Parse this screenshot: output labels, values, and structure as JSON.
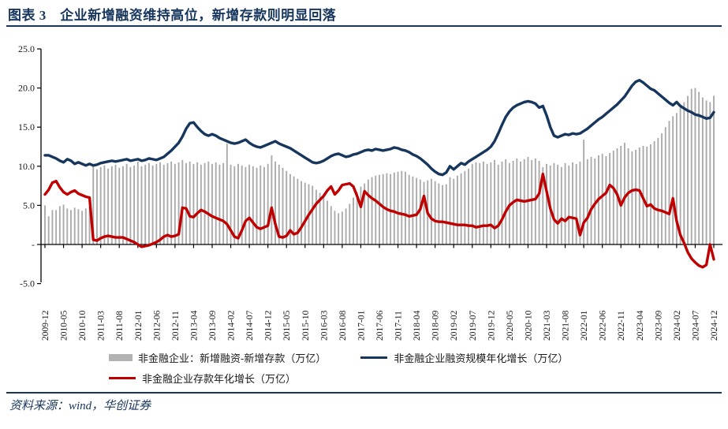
{
  "title": "图表 3　企业新增融资维持高位，新增存款则明显回落",
  "source_note": "资料来源：wind，华创证券",
  "colors": {
    "accent_navy": "#17365d",
    "line_red": "#c00000",
    "bar_gray": "#ababab",
    "axis_black": "#000000"
  },
  "chart_data": {
    "type": "combo",
    "title": "企业新增融资维持高位，新增存款则明显回落",
    "x_unit": "month",
    "x_start": "2009-12",
    "x_end": "2024-12",
    "xlabel": "",
    "ylabel": "",
    "ylim": [
      -5,
      25
    ],
    "grid": false,
    "legend_position": "bottom",
    "y_ticks": {
      "labels": [
        "25.0",
        "20.0",
        "15.0",
        "10.0",
        "5.0",
        "-",
        "-5.0"
      ],
      "values": [
        25,
        20,
        15,
        10,
        5,
        0,
        -5
      ]
    },
    "x_tick_labels": [
      "2009-12",
      "2010-05",
      "2010-10",
      "2011-03",
      "2011-08",
      "2012-01",
      "2012-06",
      "2012-11",
      "2013-04",
      "2013-09",
      "2014-02",
      "2014-07",
      "2014-12",
      "2015-05",
      "2015-10",
      "2016-03",
      "2016-08",
      "2017-01",
      "2017-06",
      "2017-11",
      "2018-04",
      "2018-09",
      "2019-02",
      "2019-07",
      "2019-12",
      "2020-05",
      "2020-10",
      "2021-03",
      "2021-08",
      "2022-01",
      "2022-06",
      "2022-11",
      "2023-04",
      "2023-09",
      "2024-02",
      "2024-07",
      "2024-12"
    ],
    "series": [
      {
        "name": "非金融企业：新增融资-新增存款（万亿）",
        "type": "bar",
        "color": "#ababab",
        "values": [
          5.0,
          3.6,
          4.4,
          4.4,
          4.9,
          5.1,
          4.6,
          4.4,
          4.7,
          4.5,
          4.3,
          4.6,
          4.8,
          10.3,
          9.6,
          9.9,
          10.1,
          9.7,
          10.0,
          10.2,
          9.8,
          10.0,
          10.3,
          9.9,
          10.1,
          10.6,
          10.0,
          10.2,
          10.4,
          10.1,
          10.3,
          10.5,
          10.2,
          10.4,
          10.6,
          10.3,
          10.5,
          10.8,
          10.4,
          10.6,
          10.3,
          10.5,
          10.2,
          10.4,
          10.6,
          10.3,
          10.5,
          10.2,
          10.4,
          12.9,
          10.2,
          10.0,
          10.3,
          10.1,
          9.9,
          10.2,
          10.0,
          9.8,
          10.1,
          9.9,
          10.3,
          11.4,
          10.6,
          10.2,
          9.8,
          9.4,
          9.0,
          8.7,
          8.4,
          8.1,
          7.9,
          7.7,
          7.5,
          7.0,
          6.6,
          6.2,
          5.6,
          4.9,
          4.3,
          4.0,
          4.2,
          4.6,
          5.2,
          6.0,
          6.7,
          7.4,
          7.8,
          8.3,
          8.6,
          8.8,
          8.9,
          9.0,
          9.1,
          9.0,
          9.2,
          9.3,
          9.4,
          9.3,
          8.9,
          8.7,
          8.5,
          8.3,
          8.0,
          8.2,
          8.4,
          8.1,
          7.8,
          7.6,
          7.7,
          8.6,
          8.4,
          8.8,
          9.1,
          9.4,
          9.7,
          10.3,
          10.5,
          10.4,
          10.6,
          10.3,
          10.5,
          10.8,
          10.2,
          10.6,
          10.9,
          10.4,
          10.7,
          11.0,
          10.6,
          10.9,
          11.2,
          10.8,
          11.0,
          10.7,
          9.9,
          10.3,
          10.1,
          10.4,
          10.2,
          9.9,
          10.4,
          10.1,
          10.5,
          10.3,
          10.6,
          13.4,
          10.9,
          11.2,
          11.0,
          11.4,
          11.6,
          11.3,
          11.7,
          12.0,
          12.3,
          12.6,
          13.0,
          12.3,
          11.9,
          12.1,
          12.4,
          12.6,
          12.5,
          12.8,
          13.2,
          13.6,
          14.2,
          15.0,
          15.8,
          16.4,
          16.8,
          17.5,
          18.2,
          19.0,
          19.9,
          20.0,
          19.5,
          18.8,
          18.4,
          18.2,
          19.0
        ]
      },
      {
        "name": "非金融企业融资规模年化增长（万亿）",
        "type": "line",
        "color": "#17365d",
        "values": [
          11.4,
          11.4,
          11.2,
          11.0,
          10.7,
          10.5,
          10.9,
          10.7,
          10.3,
          10.5,
          10.3,
          10.1,
          10.3,
          10.1,
          10.2,
          10.4,
          10.5,
          10.6,
          10.7,
          10.6,
          10.7,
          10.8,
          10.9,
          10.7,
          10.8,
          10.9,
          10.7,
          10.8,
          11.0,
          10.9,
          10.8,
          11.0,
          11.2,
          11.6,
          12.0,
          12.5,
          13.0,
          13.8,
          14.8,
          15.5,
          15.6,
          15.0,
          14.5,
          14.1,
          13.9,
          14.1,
          13.9,
          13.6,
          13.4,
          13.2,
          13.0,
          12.9,
          13.0,
          13.2,
          13.4,
          13.0,
          12.7,
          12.5,
          12.4,
          12.6,
          12.8,
          13.0,
          13.2,
          12.9,
          12.7,
          12.5,
          12.3,
          12.0,
          11.7,
          11.4,
          11.1,
          10.8,
          10.5,
          10.4,
          10.5,
          10.7,
          11.0,
          11.3,
          11.5,
          11.6,
          11.4,
          11.2,
          11.3,
          11.5,
          11.6,
          11.8,
          12.0,
          12.1,
          12.0,
          12.2,
          12.1,
          12.0,
          12.1,
          12.2,
          12.4,
          12.3,
          12.1,
          12.0,
          11.8,
          11.5,
          11.3,
          11.0,
          10.6,
          10.2,
          9.7,
          9.3,
          9.0,
          8.9,
          9.2,
          10.0,
          9.6,
          10.0,
          10.4,
          10.2,
          10.6,
          10.9,
          11.2,
          11.5,
          11.8,
          12.1,
          12.5,
          13.2,
          14.2,
          15.3,
          16.3,
          17.0,
          17.5,
          17.8,
          18.0,
          18.2,
          18.3,
          18.2,
          18.0,
          17.5,
          17.7,
          16.5,
          15.0,
          13.9,
          13.7,
          13.9,
          14.1,
          14.0,
          14.2,
          14.1,
          14.2,
          14.5,
          14.8,
          15.2,
          15.6,
          16.0,
          16.3,
          16.7,
          17.1,
          17.5,
          17.9,
          18.4,
          18.9,
          19.6,
          20.3,
          20.8,
          21.0,
          20.7,
          20.3,
          19.9,
          19.7,
          19.3,
          18.9,
          18.5,
          18.1,
          17.8,
          18.2,
          17.7,
          17.4,
          17.1,
          16.9,
          16.6,
          16.5,
          16.3,
          16.1,
          16.2,
          16.9
        ]
      },
      {
        "name": "非金融企业存款年化增长（万亿）",
        "type": "line",
        "color": "#c00000",
        "values": [
          6.4,
          7.0,
          7.9,
          8.1,
          7.3,
          6.7,
          6.4,
          6.7,
          6.9,
          6.5,
          6.3,
          6.1,
          6.0,
          0.6,
          0.5,
          0.8,
          1.0,
          1.1,
          1.0,
          0.9,
          0.9,
          0.9,
          0.7,
          0.5,
          0.3,
          0.0,
          -0.3,
          -0.2,
          -0.1,
          0.1,
          0.3,
          0.6,
          1.0,
          1.2,
          1.0,
          1.1,
          1.3,
          4.7,
          4.6,
          3.6,
          3.5,
          4.0,
          4.4,
          4.2,
          3.9,
          3.6,
          3.4,
          3.2,
          3.0,
          2.6,
          1.8,
          1.0,
          0.8,
          1.8,
          3.0,
          3.4,
          2.8,
          2.2,
          2.0,
          2.2,
          2.4,
          4.7,
          2.6,
          1.0,
          0.9,
          1.1,
          1.8,
          1.3,
          1.5,
          2.2,
          3.0,
          3.8,
          4.5,
          5.2,
          5.7,
          6.2,
          6.9,
          7.4,
          6.4,
          6.9,
          7.6,
          7.7,
          7.8,
          7.4,
          6.2,
          4.8,
          6.8,
          6.3,
          5.9,
          5.6,
          5.2,
          4.8,
          4.5,
          4.3,
          4.2,
          4.0,
          3.9,
          3.8,
          3.6,
          3.7,
          3.8,
          4.5,
          6.2,
          4.0,
          3.3,
          3.0,
          2.9,
          2.9,
          2.8,
          2.7,
          2.6,
          2.5,
          2.5,
          2.5,
          2.4,
          2.4,
          2.2,
          2.3,
          2.4,
          2.4,
          2.5,
          2.1,
          2.4,
          3.2,
          4.2,
          5.0,
          5.4,
          5.7,
          5.6,
          5.5,
          5.6,
          5.7,
          5.8,
          6.5,
          9.0,
          6.8,
          4.6,
          3.2,
          2.7,
          3.3,
          3.0,
          3.5,
          3.4,
          3.3,
          1.2,
          2.8,
          3.4,
          4.5,
          5.2,
          5.8,
          6.2,
          6.6,
          7.6,
          7.2,
          6.4,
          5.0,
          6.0,
          6.6,
          6.9,
          7.0,
          6.9,
          5.9,
          4.9,
          5.1,
          4.6,
          4.4,
          4.3,
          4.1,
          3.9,
          5.9,
          3.0,
          1.2,
          0.2,
          -1.0,
          -1.8,
          -2.3,
          -2.7,
          -2.9,
          -2.6,
          0.0,
          -1.9
        ]
      }
    ]
  }
}
